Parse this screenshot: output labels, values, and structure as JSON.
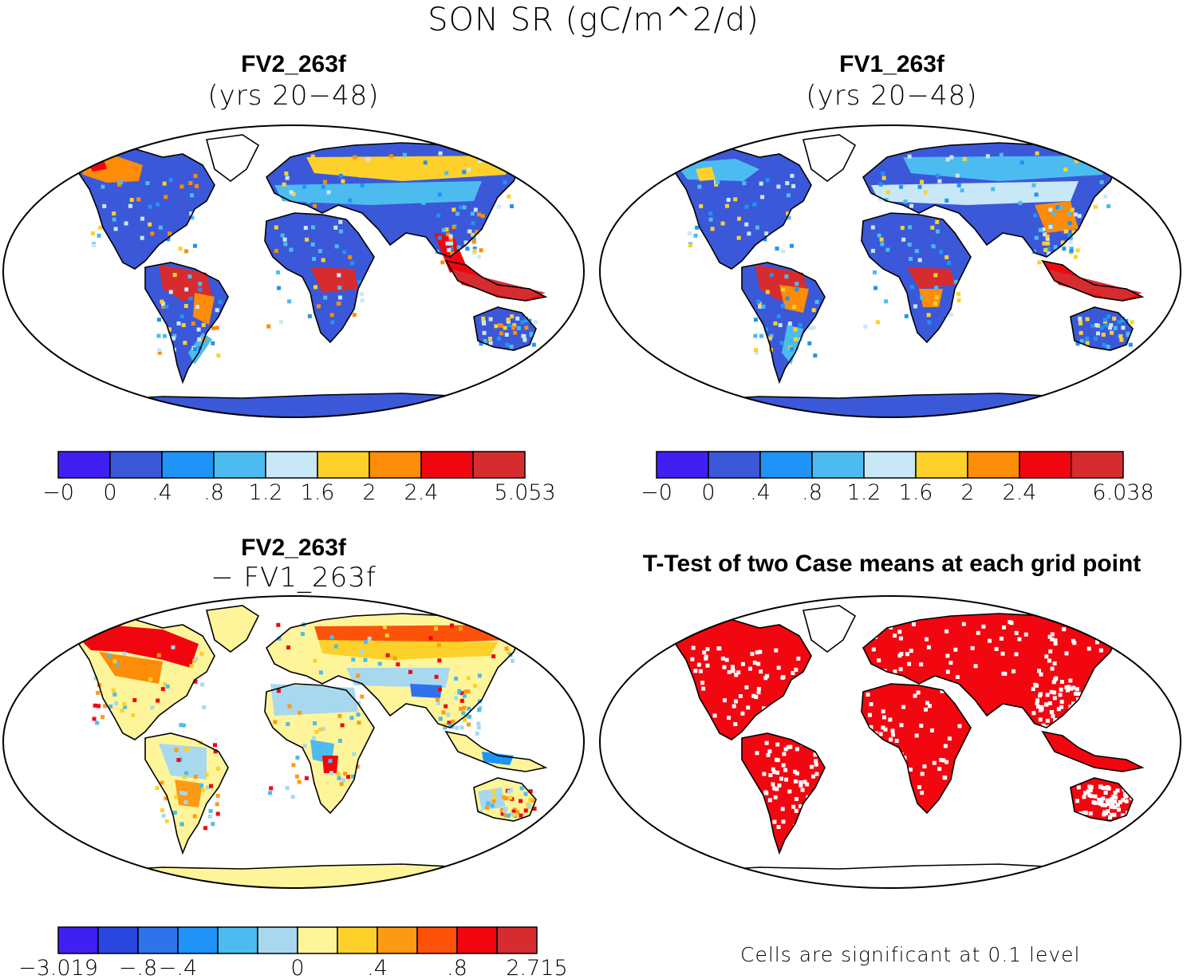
{
  "figure_title": "SON SR (gC/m^2/d)",
  "panels": [
    {
      "id": "fv2",
      "title": "FV2_263f",
      "subtitle": "(yrs 20−48)",
      "colorbar": {
        "colors": [
          "#3f1ff2",
          "#3b58d8",
          "#1f93f7",
          "#4cbcf0",
          "#c9e8f7",
          "#fdd12a",
          "#fd8c08",
          "#f1060f",
          "#d72c2f"
        ],
        "tick_labels": [
          "−0",
          "0",
          ".4",
          ".8",
          "1.2",
          "1.6",
          "2",
          "2.4",
          "5.053"
        ]
      }
    },
    {
      "id": "fv1",
      "title": "FV1_263f",
      "subtitle": "(yrs 20−48)",
      "colorbar": {
        "colors": [
          "#3f1ff2",
          "#3b58d8",
          "#1f93f7",
          "#4cbcf0",
          "#c9e8f7",
          "#fdd12a",
          "#fd8c08",
          "#f1060f",
          "#d72c2f"
        ],
        "tick_labels": [
          "−0",
          "0",
          ".4",
          ".8",
          "1.2",
          "1.6",
          "2",
          "2.4",
          "6.038"
        ]
      }
    },
    {
      "id": "diff",
      "title": "FV2_263f",
      "subtitle": "− FV1_263f",
      "colorbar": {
        "colors": [
          "#3f1ff2",
          "#2a46e0",
          "#2f72ec",
          "#1f93f7",
          "#4cbcf0",
          "#a8d8ee",
          "#fef59a",
          "#fdd12a",
          "#fd9a14",
          "#fd520a",
          "#f1060f",
          "#d72c2f"
        ],
        "tick_labels": [
          "−3.019",
          "−.8",
          "−.4",
          "0",
          ".4",
          ".8",
          "2.715"
        ]
      }
    },
    {
      "id": "ttest",
      "title": "T-Test of two Case means at each grid point",
      "note": "Cells are significant at 0.1 level",
      "significant_color": "#f2060f"
    }
  ]
}
